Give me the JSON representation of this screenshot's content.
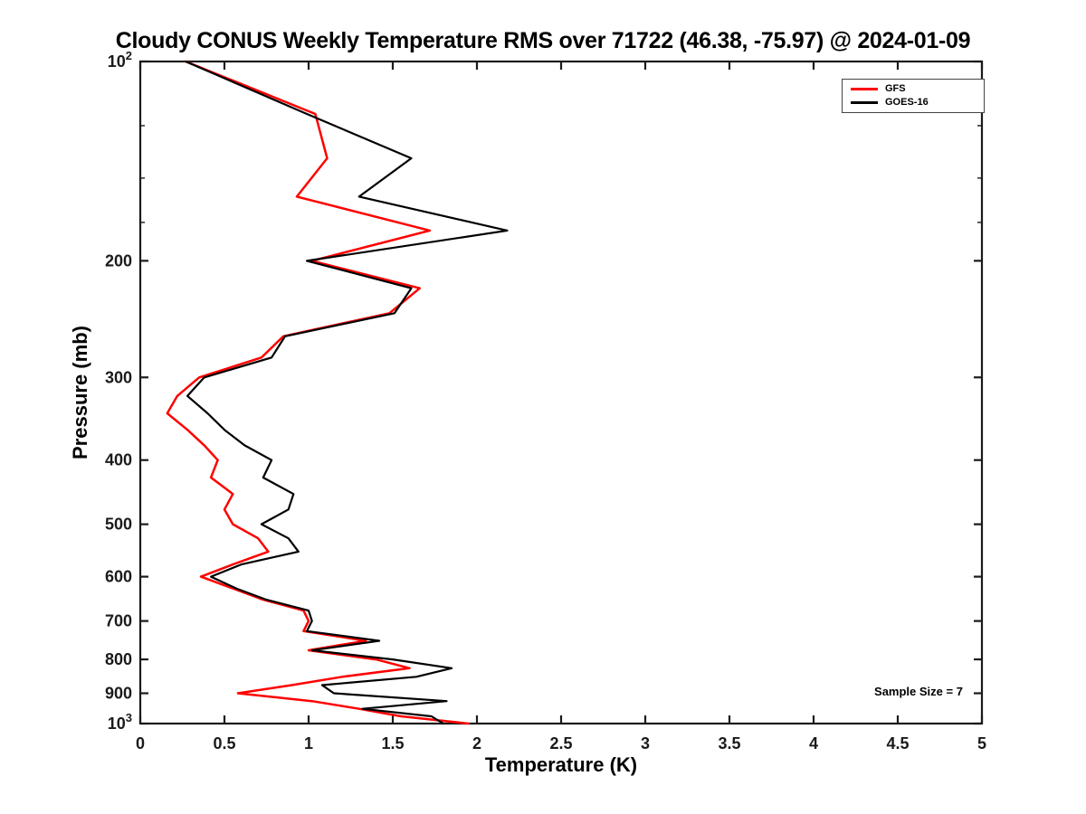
{
  "figure": {
    "background": "#ffffff",
    "axis_color": "#1a1a1a"
  },
  "chart_data": {
    "type": "line",
    "title": "Cloudy CONUS Weekly Temperature RMS over 71722 (46.38, -75.97) @ 2024-01-09",
    "xlabel": "Temperature (K)",
    "ylabel": "Pressure (mb)",
    "xlim": [
      0,
      5
    ],
    "ylim": [
      100,
      1000
    ],
    "y_scale": "log",
    "y_axis_direction": "pressure increases downward (100 mb at top, 1000 mb at bottom)",
    "grid": false,
    "legend_position": "top-right",
    "annotation": "Sample Size = 7",
    "x_ticks": [
      {
        "v": 0,
        "label": "0"
      },
      {
        "v": 0.5,
        "label": "0.5"
      },
      {
        "v": 1,
        "label": "1"
      },
      {
        "v": 1.5,
        "label": "1.5"
      },
      {
        "v": 2,
        "label": "2"
      },
      {
        "v": 2.5,
        "label": "2.5"
      },
      {
        "v": 3,
        "label": "3"
      },
      {
        "v": 3.5,
        "label": "3.5"
      },
      {
        "v": 4,
        "label": "4"
      },
      {
        "v": 4.5,
        "label": "4.5"
      },
      {
        "v": 5,
        "label": "5"
      }
    ],
    "y_ticks": [
      {
        "v": 100,
        "label": "10^2"
      },
      {
        "v": 200,
        "label": "200"
      },
      {
        "v": 300,
        "label": "300"
      },
      {
        "v": 400,
        "label": "400"
      },
      {
        "v": 500,
        "label": "500"
      },
      {
        "v": 600,
        "label": "600"
      },
      {
        "v": 700,
        "label": "700"
      },
      {
        "v": 800,
        "label": "800"
      },
      {
        "v": 900,
        "label": "900"
      },
      {
        "v": 1000,
        "label": "10^3"
      }
    ],
    "y_minor_ticks": [
      125,
      150,
      175
    ],
    "pressure_levels_mb": [
      100,
      120,
      140,
      160,
      180,
      200,
      220,
      240,
      260,
      280,
      300,
      320,
      340,
      360,
      380,
      400,
      425,
      450,
      475,
      500,
      525,
      550,
      575,
      600,
      625,
      650,
      675,
      700,
      725,
      750,
      775,
      800,
      825,
      850,
      875,
      900,
      925,
      950,
      975,
      1000
    ],
    "series": [
      {
        "name": "GFS",
        "color": "#ff0000",
        "values": [
          0.27,
          1.04,
          1.11,
          0.93,
          1.72,
          1.02,
          1.66,
          1.48,
          0.85,
          0.72,
          0.35,
          0.22,
          0.16,
          0.28,
          0.38,
          0.46,
          0.42,
          0.55,
          0.5,
          0.55,
          0.7,
          0.76,
          0.55,
          0.36,
          0.55,
          0.73,
          0.97,
          1.0,
          0.97,
          1.34,
          1.0,
          1.4,
          1.6,
          1.2,
          0.9,
          0.58,
          1.02,
          1.3,
          1.55,
          1.95
        ]
      },
      {
        "name": "GOES-16",
        "color": "#000000",
        "values": [
          0.27,
          0.99,
          1.61,
          1.3,
          2.18,
          0.99,
          1.61,
          1.51,
          0.86,
          0.78,
          0.38,
          0.28,
          0.4,
          0.5,
          0.62,
          0.78,
          0.73,
          0.91,
          0.88,
          0.72,
          0.88,
          0.94,
          0.6,
          0.42,
          0.57,
          0.75,
          1.0,
          1.02,
          0.99,
          1.42,
          1.02,
          1.5,
          1.85,
          1.64,
          1.08,
          1.15,
          1.82,
          1.32,
          1.73,
          1.8
        ]
      }
    ]
  }
}
